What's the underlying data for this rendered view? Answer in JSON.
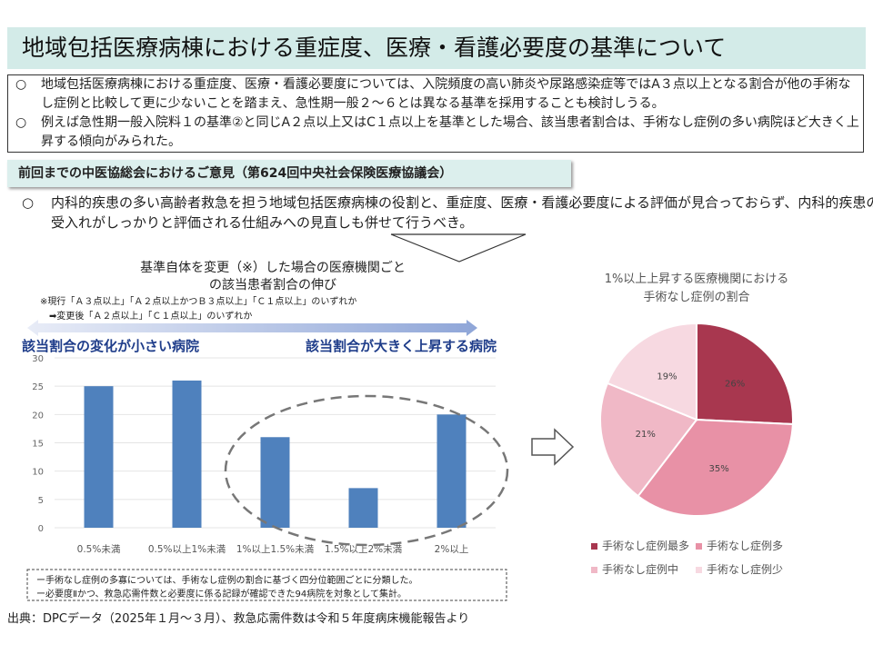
{
  "title": "地域包括医療病棟における重症度、医療・看護必要度の基準について",
  "summary": [
    {
      "marker": "○",
      "text": "地域包括医療病棟における重症度、医療・看護必要度については、入院頻度の高い肺炎や尿路感染症等ではA３点以上となる割合が他の手術なし症例と比較して更に少ないことを踏まえ、急性期一般２～６とは異なる基準を採用することも検討しうる。"
    },
    {
      "marker": "○",
      "text": "例えば急性期一般入院料１の基準②と同じA２点以上又はC１点以上を基準とした場合、該当患者割合は、手術なし症例の多い病院ほど大きく上昇する傾向がみられた。"
    }
  ],
  "opinions": {
    "heading": "前回までの中医協総会におけるご意見（第624回中央社会保険医療協議会）",
    "marker": "○",
    "text": "内科的疾患の多い高齢者救急を担う地域包括医療病棟の役割と、重症度、医療・看護必要度による評価が見合っておらず、内科的疾患の受入れがしっかりと評価される仕組みへの見直しも併せて行うべき。"
  },
  "bar_section": {
    "title1": "基準自体を変更（※）した場合の医療機関ごと",
    "title2": "の該当患者割合の伸び",
    "note1": "※現行「Ａ３点以上」「Ａ２点以上かつＢ３点以上」「Ｃ１点以上」のいずれか",
    "note2": "➡変更後「Ａ２点以上」「Ｃ１点以上」のいずれか",
    "left_label": "該当割合の変化が小さい病院",
    "right_label": "該当割合が大きく上昇する病院"
  },
  "footnotes": [
    "ー手術なし症例の多寡については、手術なし症例の割合に基づく四分位範囲ごとに分類した。",
    "ー必要度Ⅱかつ、救急応需件数と必要度に係る記録が確認できた94病院を対象として集計。"
  ],
  "source": "出典：DPCデータ（2025年１月～３月）、救急応需件数は令和５年度病床機能報告より",
  "chart_data": [
    {
      "type": "bar",
      "categories": [
        "0.5%未満",
        "0.5%以上1%未満",
        "1%以上1.5%未満",
        "1.5%以上2%未満",
        "2%以上"
      ],
      "values": [
        25,
        26,
        16,
        7,
        20
      ],
      "ylim": [
        0,
        30
      ],
      "yticks": [
        0,
        5,
        10,
        15,
        20,
        25,
        30
      ],
      "color": "#4f81bd",
      "title": "",
      "xlabel": "",
      "ylabel": ""
    },
    {
      "type": "pie",
      "title": "1%以上上昇する医療機関における 手術なし症例の割合",
      "title_lines": [
        "1%以上上昇する医療機関における",
        "手術なし症例の割合"
      ],
      "labels": [
        "手術なし症例最多",
        "手術なし症例多",
        "手術なし症例中",
        "手術なし症例少"
      ],
      "values": [
        26,
        35,
        21,
        19
      ],
      "value_labels": [
        "26%",
        "35%",
        "21%",
        "19%"
      ],
      "colors": [
        "#a8374f",
        "#e891a6",
        "#f0b8c6",
        "#f7d9e1"
      ],
      "legend": "bottom"
    }
  ]
}
